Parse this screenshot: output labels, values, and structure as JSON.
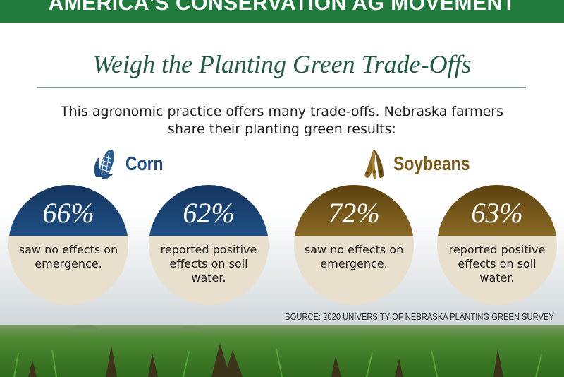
{
  "banner": {
    "text": "AMERICA'S CONSERVATION AG MOVEMENT"
  },
  "title": "Weigh the Planting Green Trade-Offs",
  "intro": "This agronomic practice offers many trade-offs. Nebraska farmers share their planting green results:",
  "crops": [
    {
      "label": "Corn",
      "icon": "corn-icon",
      "color": "#1e4c7e",
      "stats": [
        {
          "percent": "66%",
          "description": "saw no effects on emergence."
        },
        {
          "percent": "62%",
          "description": "reported positive effects on soil water."
        }
      ]
    },
    {
      "label": "Soybeans",
      "icon": "soybean-pods-icon",
      "color": "#7a5a17",
      "stats": [
        {
          "percent": "72%",
          "description": "saw no effects on emergence."
        },
        {
          "percent": "63%",
          "description": "reported positive effects on soil water."
        }
      ]
    }
  ],
  "source": "SOURCE: 2020 UNIVERSITY OF NEBRASKA PLANTING GREEN SURVEY",
  "colors": {
    "banner_green": "#1f7a3c",
    "title_green": "#215c40",
    "corn_blue": "#1e4c7e",
    "soy_brown": "#7a5a17",
    "circle_cream": "#e8dfcd"
  }
}
